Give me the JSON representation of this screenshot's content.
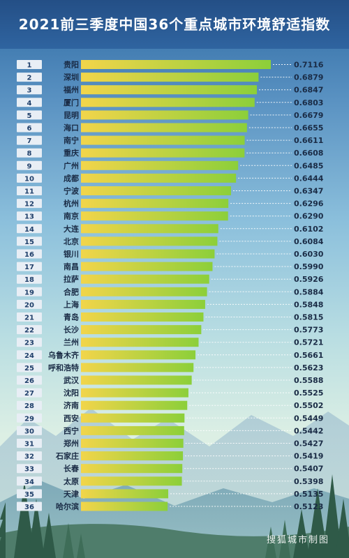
{
  "title": "2021前三季度中国36个重点城市环境舒适指数",
  "watermark": "搜狐城市制图",
  "colors": {
    "title_bg": "#27589a",
    "rank_box": "#e8eef5",
    "rank_text": "#1f3f6a",
    "city_text": "#1a2b45",
    "bar_start": "#f2d54a",
    "bar_end": "#8ccf3a",
    "value_text": "#1a2b45",
    "leader": "#ffffff"
  },
  "chart_data": {
    "type": "bar",
    "orientation": "horizontal",
    "title": "2021前三季度中国36个重点城市环境舒适指数",
    "ranks": [
      "1",
      "2",
      "3",
      "4",
      "5",
      "6",
      "7",
      "8",
      "9",
      "10",
      "11",
      "12",
      "13",
      "14",
      "15",
      "16",
      "17",
      "18",
      "19",
      "20",
      "21",
      "22",
      "23",
      "24",
      "25",
      "26",
      "27",
      "28",
      "29",
      "30",
      "31",
      "32",
      "33",
      "34",
      "35",
      "36"
    ],
    "categories": [
      "贵阳",
      "深圳",
      "福州",
      "厦门",
      "昆明",
      "海口",
      "南宁",
      "重庆",
      "广州",
      "成都",
      "宁波",
      "杭州",
      "南京",
      "大连",
      "北京",
      "银川",
      "南昌",
      "拉萨",
      "合肥",
      "上海",
      "青岛",
      "长沙",
      "兰州",
      "乌鲁木齐",
      "呼和浩特",
      "武汉",
      "沈阳",
      "济南",
      "西安",
      "西宁",
      "郑州",
      "石家庄",
      "长春",
      "太原",
      "天津",
      "哈尔滨"
    ],
    "values": [
      0.7116,
      0.6879,
      0.6847,
      0.6803,
      0.6679,
      0.6655,
      0.6611,
      0.6608,
      0.6485,
      0.6444,
      0.6347,
      0.6296,
      0.629,
      0.6102,
      0.6084,
      0.603,
      0.599,
      0.5926,
      0.5884,
      0.5848,
      0.5815,
      0.5773,
      0.5721,
      0.5661,
      0.5623,
      0.5588,
      0.5525,
      0.5502,
      0.5449,
      0.5442,
      0.5427,
      0.5419,
      0.5407,
      0.5398,
      0.5135,
      0.5123
    ],
    "value_labels": [
      "0.7116",
      "0.6879",
      "0.6847",
      "0.6803",
      "0.6679",
      "0.6655",
      "0.6611",
      "0.6608",
      "0.6485",
      "0.6444",
      "0.6347",
      "0.6296",
      "0.6290",
      "0.6102",
      "0.6084",
      "0.6030",
      "0.5990",
      "0.5926",
      "0.5884",
      "0.5848",
      "0.5815",
      "0.5773",
      "0.5721",
      "0.5661",
      "0.5623",
      "0.5588",
      "0.5525",
      "0.5502",
      "0.5449",
      "0.5442",
      "0.5427",
      "0.5419",
      "0.5407",
      "0.5398",
      "0.5135",
      "0.5123"
    ],
    "xlim": [
      0.345,
      0.7116
    ],
    "grid": false,
    "legend": "none"
  }
}
